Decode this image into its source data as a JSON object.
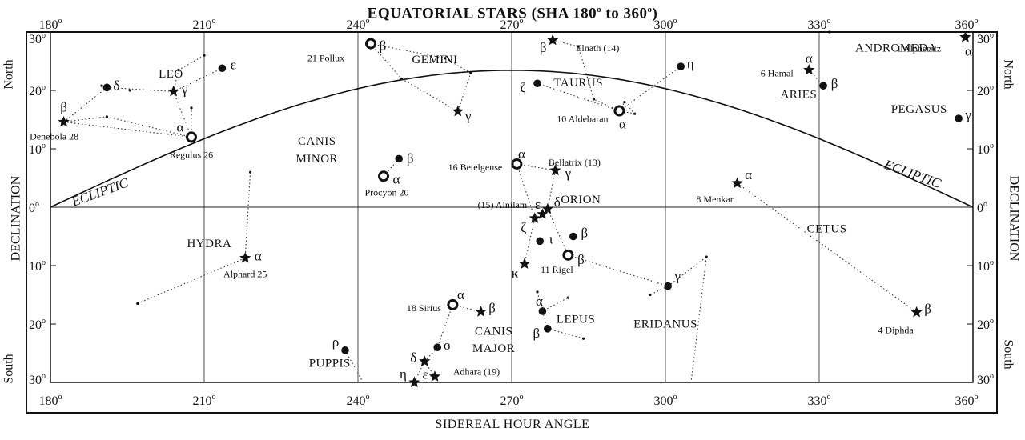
{
  "chart_data": {
    "type": "scatter",
    "title": "EQUATORIAL STARS (SHA 180",
    "title_deg": "o",
    "title_mid": " to 360",
    "title_end": ")",
    "xlabel": "SIDEREAL HOUR ANGLE",
    "ylabel_left": "DECLINATION",
    "ylabel_right": "DECLINATION",
    "north_label": "North",
    "south_label": "South",
    "xlim": [
      180,
      360
    ],
    "ylim": [
      -30,
      30
    ],
    "x_ticks": [
      "180",
      "210",
      "240",
      "270",
      "300",
      "330",
      "360"
    ],
    "x_tick_values": [
      180,
      210,
      240,
      270,
      300,
      330,
      360
    ],
    "y_ticks": [
      "30",
      "20",
      "10",
      "0",
      "10",
      "20",
      "30"
    ],
    "y_tick_values": [
      30,
      20,
      10,
      0,
      -10,
      -20,
      -30
    ],
    "degree_symbol": "o",
    "ecliptic_label_left": "ECLIPTIC",
    "ecliptic_label_right": "ECLIPTIC",
    "constellations": [
      {
        "name": "LEO",
        "x": 203.5,
        "y": 23.0
      },
      {
        "name": "GEMINI",
        "x": 255.0,
        "y": 25.5
      },
      {
        "name": "TAURUS",
        "x": 283.0,
        "y": 21.5
      },
      {
        "name": "ARIES",
        "x": 326.0,
        "y": 19.5
      },
      {
        "name": "ANDROMEDA",
        "x": 345.0,
        "y": 27.5
      },
      {
        "name": "PEGASUS",
        "x": 349.5,
        "y": 17.0
      },
      {
        "name": "CANIS",
        "x": 232.0,
        "y": 11.5
      },
      {
        "name": "MINOR",
        "x": 232.0,
        "y": 8.5
      },
      {
        "name": "ORION",
        "x": 283.5,
        "y": 1.5
      },
      {
        "name": "CETUS",
        "x": 331.5,
        "y": -3.5
      },
      {
        "name": "HYDRA",
        "x": 211.0,
        "y": -6.0
      },
      {
        "name": "CANIS",
        "x": 266.5,
        "y": -21.0
      },
      {
        "name": "MAJOR",
        "x": 266.5,
        "y": -24.0
      },
      {
        "name": "LEPUS",
        "x": 282.5,
        "y": -19.0
      },
      {
        "name": "ERIDANUS",
        "x": 300.0,
        "y": -19.8
      },
      {
        "name": "PUPPIS",
        "x": 234.5,
        "y": -26.5
      }
    ],
    "stars": [
      {
        "id": "denebola",
        "x": 182.6,
        "y": 14.6,
        "m": "star",
        "g": "β",
        "gdx": 0,
        "gdy": -18,
        "label": "Denebola 28",
        "ldx": -12,
        "ldy": 18
      },
      {
        "id": "leo-delta",
        "x": 191.0,
        "y": 20.5,
        "m": "dot",
        "g": "δ",
        "gdx": 12,
        "gdy": -2
      },
      {
        "id": "leo-gamma",
        "x": 204.0,
        "y": 19.8,
        "m": "star",
        "g": "γ",
        "gdx": 14,
        "gdy": -2
      },
      {
        "id": "leo-epsilon",
        "x": 213.5,
        "y": 23.8,
        "m": "dot",
        "g": "ε",
        "gdx": 14,
        "gdy": -4
      },
      {
        "id": "regulus",
        "x": 207.5,
        "y": 12.0,
        "m": "ring",
        "g": "α",
        "gdx": -14,
        "gdy": -12,
        "label": "Regulus 26",
        "ldx": 0,
        "ldy": 22
      },
      {
        "id": "pollux",
        "x": 242.5,
        "y": 28.0,
        "m": "ring",
        "g": "β",
        "gdx": 15,
        "gdy": 3,
        "label": "21 Pollux",
        "ldx": -56,
        "ldy": 18
      },
      {
        "id": "gemini-gamma",
        "x": 259.5,
        "y": 16.4,
        "m": "star",
        "g": "γ",
        "gdx": 13,
        "gdy": 6
      },
      {
        "id": "procyon",
        "x": 245.0,
        "y": 5.3,
        "m": "ring",
        "g": "α",
        "gdx": 16,
        "gdy": 4,
        "label": "Procyon 20",
        "ldx": 4,
        "ldy": 20
      },
      {
        "id": "cmi-beta",
        "x": 248.0,
        "y": 8.3,
        "m": "dot",
        "g": "β",
        "gdx": 14,
        "gdy": 0
      },
      {
        "id": "elnath",
        "x": 278.0,
        "y": 28.6,
        "m": "star",
        "g": "β",
        "gdx": -12,
        "gdy": 10,
        "label": "Elnath (14)",
        "ldx": 56,
        "ldy": 10
      },
      {
        "id": "taurus-zeta",
        "x": 275.0,
        "y": 21.2,
        "m": "dot",
        "g": "ζ",
        "gdx": -18,
        "gdy": 6
      },
      {
        "id": "aldebaran",
        "x": 291.0,
        "y": 16.5,
        "m": "ring",
        "g": "α",
        "gdx": 4,
        "gdy": 17,
        "label": "10 Aldebaran",
        "ldx": -46,
        "ldy": 10
      },
      {
        "id": "taurus-eta",
        "x": 303.0,
        "y": 24.1,
        "m": "dot",
        "g": "η",
        "gdx": 12,
        "gdy": -3
      },
      {
        "id": "hamal",
        "x": 328.0,
        "y": 23.5,
        "m": "star",
        "g": "α",
        "gdx": 0,
        "gdy": -14,
        "label": "6 Hamal",
        "ldx": -40,
        "ldy": 4
      },
      {
        "id": "aries-beta",
        "x": 330.8,
        "y": 20.8,
        "m": "dot",
        "g": "β",
        "gdx": 14,
        "gdy": -2
      },
      {
        "id": "alpheratz",
        "x": 358.5,
        "y": 29.1,
        "m": "star",
        "g": "α",
        "gdx": 4,
        "gdy": 18,
        "label": "1 Alpheratz",
        "ldx": -58,
        "ldy": 14
      },
      {
        "id": "algenib",
        "x": 357.2,
        "y": 15.2,
        "m": "dot",
        "g": "γ",
        "gdx": 12,
        "gdy": -4
      },
      {
        "id": "betelgeuse",
        "x": 271.0,
        "y": 7.4,
        "m": "ring",
        "g": "α",
        "gdx": 6,
        "gdy": -12,
        "label": "16 Betelgeuse",
        "ldx": -52,
        "ldy": 4
      },
      {
        "id": "bellatrix",
        "x": 278.5,
        "y": 6.3,
        "m": "star",
        "g": "γ",
        "gdx": 16,
        "gdy": 4,
        "label": "Bellatrix (13)",
        "ldx": 24,
        "ldy": -10
      },
      {
        "id": "alnilam",
        "x": 276.0,
        "y": -1.2,
        "m": "star",
        "g": "ε",
        "gdx": -6,
        "gdy": -12,
        "label": "(15) Alnilam",
        "ldx": -50,
        "ldy": -12
      },
      {
        "id": "mintaka",
        "x": 277.0,
        "y": -0.3,
        "m": "star",
        "g": "δ",
        "gdx": 12,
        "gdy": -8
      },
      {
        "id": "alnitak",
        "x": 274.5,
        "y": -1.9,
        "m": "star",
        "g": "ζ",
        "gdx": -14,
        "gdy": 12
      },
      {
        "id": "orion-iota",
        "x": 275.5,
        "y": -5.8,
        "m": "dot",
        "g": "ι",
        "gdx": 14,
        "gdy": -2
      },
      {
        "id": "rigel",
        "x": 281.0,
        "y": -8.2,
        "m": "ring",
        "g": "β",
        "gdx": 16,
        "gdy": 6,
        "label": "11 Rigel",
        "ldx": -14,
        "ldy": 18
      },
      {
        "id": "orion-beta2",
        "x": 282.0,
        "y": -5.0,
        "m": "dot",
        "g": "β",
        "gdx": 14,
        "gdy": -4
      },
      {
        "id": "saiph",
        "x": 272.5,
        "y": -9.7,
        "m": "star",
        "g": "κ",
        "gdx": -12,
        "gdy": 12
      },
      {
        "id": "menkar",
        "x": 314.0,
        "y": 4.1,
        "m": "star",
        "g": "α",
        "gdx": 14,
        "gdy": -10,
        "label": "8 Menkar",
        "ldx": -28,
        "ldy": 20
      },
      {
        "id": "diphda",
        "x": 349.0,
        "y": -18.0,
        "m": "star",
        "g": "β",
        "gdx": 14,
        "gdy": -4,
        "label": "4 Diphda",
        "ldx": -26,
        "ldy": 22
      },
      {
        "id": "eridanus-gamma",
        "x": 300.5,
        "y": -13.5,
        "m": "dot",
        "g": "γ",
        "gdx": 12,
        "gdy": -12
      },
      {
        "id": "alphard",
        "x": 218.0,
        "y": -8.7,
        "m": "star",
        "g": "α",
        "gdx": 16,
        "gdy": -2,
        "label": "Alphard 25",
        "ldx": 0,
        "ldy": 20
      },
      {
        "id": "sirius",
        "x": 258.5,
        "y": -16.7,
        "m": "ring",
        "g": "α",
        "gdx": 10,
        "gdy": -12,
        "label": "18 Sirius",
        "ldx": -36,
        "ldy": 4
      },
      {
        "id": "cma-beta",
        "x": 264.0,
        "y": -17.9,
        "m": "star",
        "g": "β",
        "gdx": 14,
        "gdy": -4
      },
      {
        "id": "cma-omicron",
        "x": 255.5,
        "y": -24.0,
        "m": "dot",
        "g": "o",
        "gdx": 12,
        "gdy": -2
      },
      {
        "id": "cma-delta",
        "x": 253.0,
        "y": -26.4,
        "m": "star",
        "g": "δ",
        "gdx": -14,
        "gdy": -4
      },
      {
        "id": "adhara",
        "x": 255.0,
        "y": -29.0,
        "m": "star",
        "g": "ε",
        "gdx": -12,
        "gdy": -2,
        "label": "Adhara (19)",
        "ldx": 52,
        "ldy": -6
      },
      {
        "id": "cma-eta",
        "x": 251.0,
        "y": -30.0,
        "m": "star",
        "g": "η",
        "gdx": -14,
        "gdy": -10
      },
      {
        "id": "puppis-rho",
        "x": 237.5,
        "y": -24.5,
        "m": "dot",
        "g": "ρ",
        "gdx": -12,
        "gdy": -10
      },
      {
        "id": "lepus-alpha",
        "x": 276.0,
        "y": -17.8,
        "m": "dot",
        "g": "α",
        "gdx": -4,
        "gdy": -12
      },
      {
        "id": "lepus-beta",
        "x": 277.0,
        "y": -20.8,
        "m": "dot",
        "g": "β",
        "gdx": -14,
        "gdy": 6
      }
    ],
    "minor_stars": [
      [
        190.0,
        20.8
      ],
      [
        195.5,
        20.0
      ],
      [
        205.0,
        23.5
      ],
      [
        210.0,
        26.0
      ],
      [
        207.5,
        17.0
      ],
      [
        191.0,
        15.5
      ],
      [
        248.5,
        22.0
      ],
      [
        257.0,
        25.5
      ],
      [
        262.0,
        23.0
      ],
      [
        283.0,
        27.5
      ],
      [
        286.0,
        18.5
      ],
      [
        292.0,
        18.0
      ],
      [
        294.0,
        16.0
      ],
      [
        332.0,
        30.0
      ],
      [
        219.0,
        6.0
      ],
      [
        197.0,
        -16.5
      ],
      [
        297.0,
        -15.0
      ],
      [
        308.0,
        -8.5
      ],
      [
        275.0,
        -14.5
      ],
      [
        281.0,
        -15.5
      ],
      [
        284.0,
        -22.5
      ]
    ],
    "connections": [
      [
        "denebola",
        "leo-delta"
      ],
      [
        "leo-delta",
        "leo-gamma"
      ],
      [
        "leo-gamma",
        "regulus"
      ],
      [
        "denebola",
        "regulus"
      ],
      [
        "leo-gamma",
        "leo-epsilon"
      ],
      [
        "procyon",
        "cmi-beta"
      ],
      [
        "betelgeuse",
        "alnitak"
      ],
      [
        "bellatrix",
        "mintaka"
      ],
      [
        "alnitak",
        "saiph"
      ],
      [
        "mintaka",
        "rigel"
      ],
      [
        "betelgeuse",
        "bellatrix"
      ],
      [
        "sirius",
        "cma-beta"
      ],
      [
        "sirius",
        "cma-omicron"
      ],
      [
        "cma-omicron",
        "cma-delta"
      ],
      [
        "cma-delta",
        "adhara"
      ],
      [
        "cma-delta",
        "cma-eta"
      ],
      [
        "lepus-alpha",
        "lepus-beta"
      ],
      [
        "menkar",
        "diphda"
      ],
      [
        "hamal",
        "aries-beta"
      ],
      [
        "aldebaran",
        "taurus-zeta"
      ],
      [
        "aldebaran",
        "taurus-eta"
      ]
    ],
    "extra_lines": [
      [
        [
          182.6,
          14.6
        ],
        [
          191.0,
          15.5
        ],
        [
          207.5,
          12.0
        ]
      ],
      [
        [
          204.0,
          19.8
        ],
        [
          205.0,
          23.5
        ],
        [
          210.0,
          26.0
        ]
      ],
      [
        [
          207.5,
          12.0
        ],
        [
          207.5,
          17.0
        ]
      ],
      [
        [
          242.5,
          28.0
        ],
        [
          257.0,
          25.5
        ],
        [
          262.0,
          23.0
        ],
        [
          259.5,
          16.4
        ]
      ],
      [
        [
          242.5,
          28.0
        ],
        [
          248.5,
          22.0
        ],
        [
          259.5,
          16.4
        ]
      ],
      [
        [
          197.0,
          -16.5
        ],
        [
          218.0,
          -8.7
        ],
        [
          219.0,
          6.0
        ]
      ],
      [
        [
          278.0,
          28.6
        ],
        [
          283.0,
          27.5
        ],
        [
          286.0,
          18.5
        ],
        [
          291.0,
          16.5
        ]
      ],
      [
        [
          291.0,
          16.5
        ],
        [
          292.0,
          18.0
        ],
        [
          294.0,
          16.0
        ],
        [
          291.0,
          16.5
        ]
      ],
      [
        [
          281.0,
          -8.2
        ],
        [
          300.5,
          -13.5
        ],
        [
          308.0,
          -8.5
        ]
      ],
      [
        [
          300.5,
          -13.5
        ],
        [
          297.0,
          -15.0
        ]
      ],
      [
        [
          308.0,
          -8.5
        ],
        [
          305.0,
          -30.0
        ]
      ],
      [
        [
          275.0,
          -14.5
        ],
        [
          276.0,
          -17.8
        ],
        [
          281.0,
          -15.5
        ]
      ],
      [
        [
          277.0,
          -20.8
        ],
        [
          284.0,
          -22.5
        ]
      ],
      [
        [
          237.5,
          -24.5
        ],
        [
          241.0,
          -30.0
        ]
      ]
    ]
  }
}
